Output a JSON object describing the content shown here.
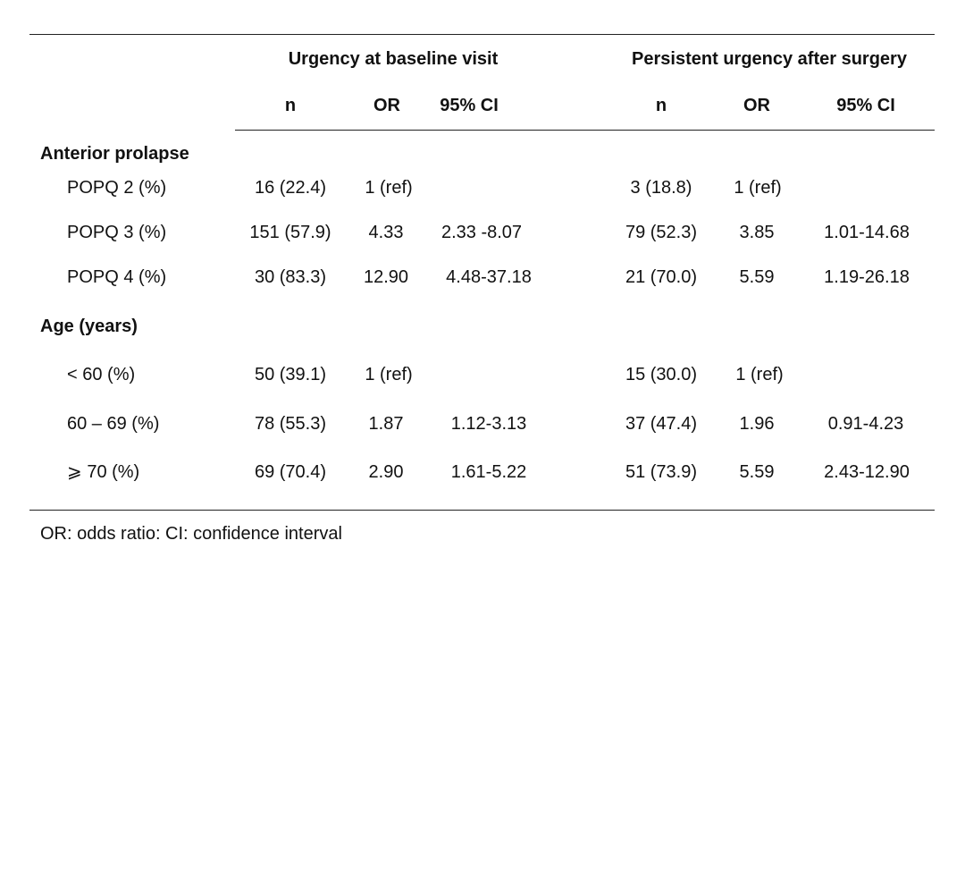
{
  "table": {
    "group_headers": [
      "Urgency at baseline visit",
      "Persistent urgency after surgery"
    ],
    "column_headers": [
      "n",
      "OR",
      "95% CI",
      "n",
      "OR",
      "95% CI"
    ],
    "sections": [
      {
        "title": "Anterior prolapse",
        "rows": [
          {
            "label": "POPQ 2 (%)",
            "cells": [
              "16 (22.4)",
              "1 (ref)",
              "",
              "3 (18.8)",
              "1 (ref)",
              ""
            ]
          },
          {
            "label": "POPQ 3 (%)",
            "cells": [
              "151 (57.9)",
              "4.33",
              "2.33 -8.07",
              "79 (52.3)",
              "3.85",
              "1.01-14.68"
            ]
          },
          {
            "label": "POPQ 4 (%)",
            "cells": [
              "30 (83.3)",
              "12.90",
              "4.48-37.18",
              "21 (70.0)",
              "5.59",
              "1.19-26.18"
            ]
          }
        ]
      },
      {
        "title": "Age (years)",
        "rows": [
          {
            "label": "< 60 (%)",
            "cells": [
              "50 (39.1)",
              "1 (ref)",
              "",
              "15 (30.0)",
              "1 (ref)",
              ""
            ]
          },
          {
            "label": "60 – 69 (%)",
            "cells": [
              "78 (55.3)",
              "1.87",
              "1.12-3.13",
              "37 (47.4)",
              "1.96",
              "0.91-4.23"
            ]
          },
          {
            "label": "⩾ 70 (%)",
            "cells": [
              "69 (70.4)",
              "2.90",
              "1.61-5.22",
              "51 (73.9)",
              "5.59",
              "2.43-12.90"
            ]
          }
        ]
      }
    ],
    "footnote": "OR: odds ratio: CI: confidence interval"
  }
}
